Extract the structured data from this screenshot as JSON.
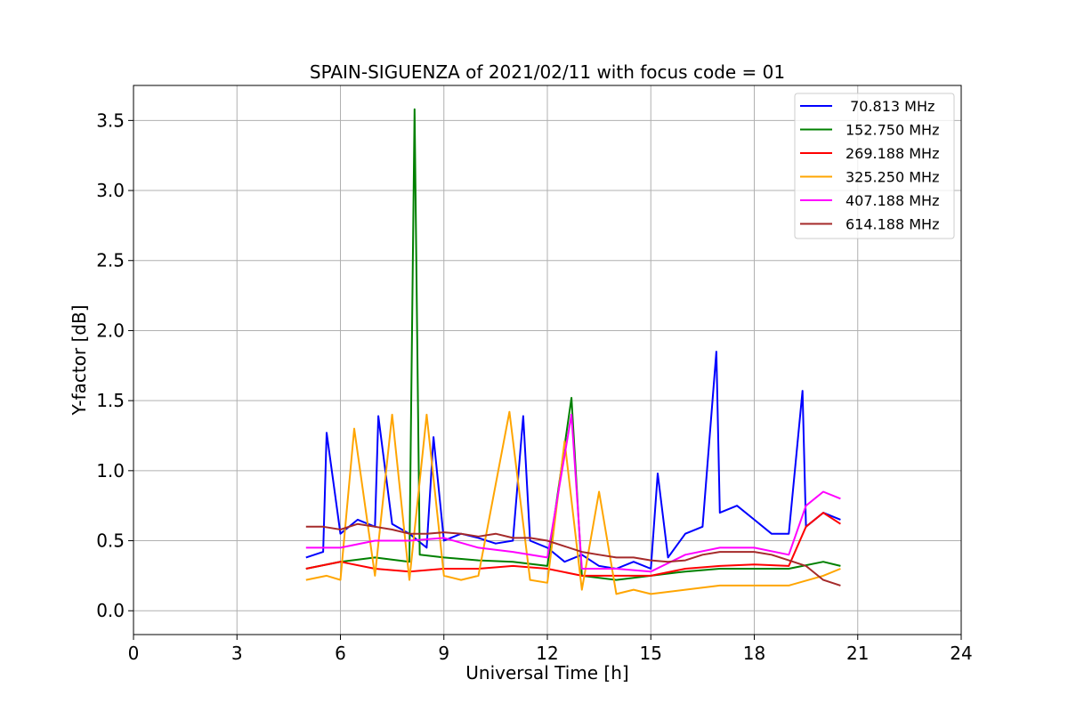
{
  "chart_data": {
    "type": "line",
    "title": "SPAIN-SIGUENZA of 2021/02/11 with focus code = 01",
    "xlabel": "Universal Time [h]",
    "ylabel": "Y-factor [dB]",
    "xlim": [
      0,
      24
    ],
    "ylim": [
      -0.17,
      3.75
    ],
    "xticks": [
      0,
      3,
      6,
      9,
      12,
      15,
      18,
      21,
      24
    ],
    "xtick_labels": [
      "0",
      "3",
      "6",
      "9",
      "12",
      "15",
      "18",
      "21",
      "24"
    ],
    "yticks": [
      0.0,
      0.5,
      1.0,
      1.5,
      2.0,
      2.5,
      3.0,
      3.5
    ],
    "ytick_labels": [
      "0.0",
      "0.5",
      "1.0",
      "1.5",
      "2.0",
      "2.5",
      "3.0",
      "3.5"
    ],
    "grid": true,
    "legend_position": "top-right",
    "series": [
      {
        "name": " 70.813 MHz",
        "color": "#0000ff",
        "x": [
          5.0,
          5.5,
          5.6,
          6.0,
          6.5,
          7.0,
          7.1,
          7.5,
          8.0,
          8.5,
          8.7,
          9.0,
          9.5,
          10.0,
          10.5,
          11.0,
          11.3,
          11.5,
          12.0,
          12.5,
          13.0,
          13.5,
          14.0,
          14.5,
          15.0,
          15.2,
          15.5,
          16.0,
          16.5,
          16.9,
          17.0,
          17.5,
          18.0,
          18.5,
          19.0,
          19.4,
          19.5,
          20.0,
          20.5
        ],
        "y": [
          0.38,
          0.42,
          1.27,
          0.55,
          0.65,
          0.6,
          1.39,
          0.62,
          0.55,
          0.45,
          1.24,
          0.5,
          0.55,
          0.52,
          0.48,
          0.5,
          1.39,
          0.5,
          0.45,
          0.35,
          0.4,
          0.32,
          0.3,
          0.35,
          0.3,
          0.98,
          0.38,
          0.55,
          0.6,
          1.85,
          0.7,
          0.75,
          0.65,
          0.55,
          0.55,
          1.57,
          0.6,
          0.7,
          0.65
        ]
      },
      {
        "name": "152.750 MHz",
        "color": "#008000",
        "x": [
          5.0,
          6.0,
          7.0,
          8.0,
          8.15,
          8.3,
          9.0,
          10.0,
          11.0,
          12.0,
          12.7,
          13.0,
          14.0,
          15.0,
          16.0,
          17.0,
          18.0,
          19.0,
          20.0,
          20.5
        ],
        "y": [
          0.3,
          0.35,
          0.38,
          0.35,
          3.58,
          0.4,
          0.38,
          0.36,
          0.35,
          0.32,
          1.52,
          0.25,
          0.22,
          0.25,
          0.28,
          0.3,
          0.3,
          0.3,
          0.35,
          0.32
        ]
      },
      {
        "name": "269.188 MHz",
        "color": "#ff0000",
        "x": [
          5.0,
          6.0,
          7.0,
          8.0,
          9.0,
          10.0,
          11.0,
          12.0,
          13.0,
          14.0,
          15.0,
          16.0,
          17.0,
          18.0,
          19.0,
          19.5,
          20.0,
          20.5
        ],
        "y": [
          0.3,
          0.35,
          0.3,
          0.28,
          0.3,
          0.3,
          0.32,
          0.3,
          0.25,
          0.25,
          0.25,
          0.3,
          0.32,
          0.33,
          0.32,
          0.6,
          0.7,
          0.62
        ]
      },
      {
        "name": "325.250 MHz",
        "color": "#ffa500",
        "x": [
          5.0,
          5.6,
          6.0,
          6.4,
          7.0,
          7.5,
          8.0,
          8.5,
          9.0,
          9.5,
          10.0,
          10.9,
          11.5,
          12.0,
          12.5,
          13.0,
          13.5,
          14.0,
          14.5,
          15.0,
          16.0,
          17.0,
          18.0,
          19.0,
          20.0,
          20.5
        ],
        "y": [
          0.22,
          0.25,
          0.22,
          1.3,
          0.25,
          1.4,
          0.22,
          1.4,
          0.25,
          0.22,
          0.25,
          1.42,
          0.22,
          0.2,
          1.21,
          0.15,
          0.85,
          0.12,
          0.15,
          0.12,
          0.15,
          0.18,
          0.18,
          0.18,
          0.25,
          0.3
        ]
      },
      {
        "name": "407.188 MHz",
        "color": "#ff00ff",
        "x": [
          5.0,
          6.0,
          7.0,
          8.0,
          9.0,
          10.0,
          11.0,
          12.0,
          12.7,
          13.0,
          14.0,
          15.0,
          16.0,
          17.0,
          18.0,
          19.0,
          19.5,
          20.0,
          20.5
        ],
        "y": [
          0.45,
          0.45,
          0.5,
          0.5,
          0.52,
          0.45,
          0.42,
          0.38,
          1.4,
          0.3,
          0.3,
          0.28,
          0.4,
          0.45,
          0.45,
          0.4,
          0.75,
          0.85,
          0.8
        ]
      },
      {
        "name": "614.188 MHz",
        "color": "#a52a2a",
        "x": [
          5.0,
          5.5,
          6.0,
          6.5,
          7.0,
          7.5,
          8.0,
          8.5,
          9.0,
          9.5,
          10.0,
          10.5,
          11.0,
          11.5,
          12.0,
          12.5,
          13.0,
          13.5,
          14.0,
          14.5,
          15.0,
          15.5,
          16.0,
          16.5,
          17.0,
          17.5,
          18.0,
          18.5,
          19.0,
          19.5,
          20.0,
          20.5
        ],
        "y": [
          0.6,
          0.6,
          0.58,
          0.62,
          0.6,
          0.58,
          0.55,
          0.55,
          0.56,
          0.55,
          0.53,
          0.55,
          0.52,
          0.52,
          0.5,
          0.46,
          0.42,
          0.4,
          0.38,
          0.38,
          0.36,
          0.35,
          0.36,
          0.4,
          0.42,
          0.42,
          0.42,
          0.4,
          0.36,
          0.32,
          0.22,
          0.18
        ]
      }
    ]
  }
}
